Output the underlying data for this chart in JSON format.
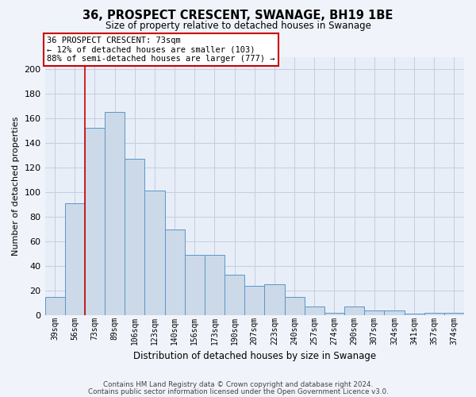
{
  "title": "36, PROSPECT CRESCENT, SWANAGE, BH19 1BE",
  "subtitle": "Size of property relative to detached houses in Swanage",
  "xlabel": "Distribution of detached houses by size in Swanage",
  "ylabel": "Number of detached properties",
  "categories": [
    "39sqm",
    "56sqm",
    "73sqm",
    "89sqm",
    "106sqm",
    "123sqm",
    "140sqm",
    "156sqm",
    "173sqm",
    "190sqm",
    "207sqm",
    "223sqm",
    "240sqm",
    "257sqm",
    "274sqm",
    "290sqm",
    "307sqm",
    "324sqm",
    "341sqm",
    "357sqm",
    "374sqm"
  ],
  "values": [
    15,
    91,
    152,
    165,
    127,
    101,
    70,
    49,
    49,
    33,
    24,
    25,
    15,
    7,
    2,
    7,
    4,
    4,
    1,
    2,
    2
  ],
  "bar_color": "#ccd9e8",
  "bar_edge_color": "#5a96c8",
  "red_line_index": 2,
  "annotation_line1": "36 PROSPECT CRESCENT: 73sqm",
  "annotation_line2": "← 12% of detached houses are smaller (103)",
  "annotation_line3": "88% of semi-detached houses are larger (777) →",
  "annotation_box_edge": "#cc0000",
  "ylim": [
    0,
    210
  ],
  "yticks": [
    0,
    20,
    40,
    60,
    80,
    100,
    120,
    140,
    160,
    180,
    200
  ],
  "grid_color": "#c4cede",
  "background_color": "#e8eef8",
  "fig_background": "#f0f4fa",
  "footer1": "Contains HM Land Registry data © Crown copyright and database right 2024.",
  "footer2": "Contains public sector information licensed under the Open Government Licence v3.0."
}
